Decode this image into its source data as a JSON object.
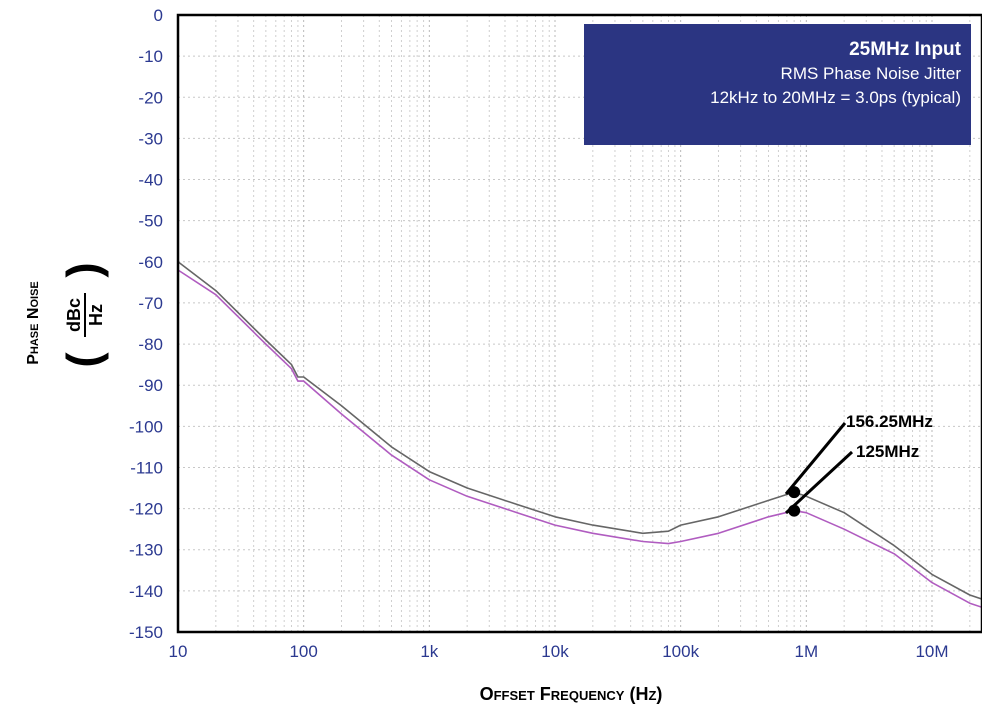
{
  "chart_data": {
    "type": "line",
    "title": "",
    "xlabel": "Offset Frequency (Hz)",
    "ylabel": "Phase Noise",
    "ylabel_unit_num": "dBc",
    "ylabel_unit_den": "Hz",
    "x_scale": "log",
    "xlim": [
      10,
      25000000
    ],
    "ylim": [
      -150,
      0
    ],
    "grid": true,
    "x_ticks": [
      10,
      100,
      1000,
      10000,
      100000,
      1000000,
      10000000
    ],
    "x_tick_labels": [
      "10",
      "100",
      "1k",
      "10k",
      "100k",
      "1M",
      "10M"
    ],
    "y_ticks": [
      0,
      -10,
      -20,
      -30,
      -40,
      -50,
      -60,
      -70,
      -80,
      -90,
      -100,
      -110,
      -120,
      -130,
      -140,
      -150
    ],
    "y_tick_labels": [
      "0",
      "-10",
      "-20",
      "-30",
      "-40",
      "-50",
      "-60",
      "-70",
      "-80",
      "-90",
      "-100",
      "-110",
      "-120",
      "-130",
      "-140",
      "-150"
    ],
    "annotation": {
      "line1": "25MHz Input",
      "line2": "RMS Phase Noise Jitter",
      "line3": "12kHz to 20MHz = 3.0ps (typical)"
    },
    "series": [
      {
        "name": "156.25MHz",
        "color": "#666666",
        "x": [
          10,
          20,
          50,
          80,
          90,
          100,
          200,
          500,
          1000,
          2000,
          5000,
          10000,
          20000,
          50000,
          80000,
          100000,
          200000,
          500000,
          800000,
          1000000,
          2000000,
          5000000,
          10000000,
          20000000,
          25000000
        ],
        "y": [
          -60,
          -67,
          -79,
          -85,
          -88,
          -88,
          -95,
          -105,
          -111,
          -115,
          -119,
          -122,
          -124,
          -126,
          -125.5,
          -124,
          -122,
          -118,
          -116,
          -117,
          -121,
          -129,
          -136,
          -141,
          -142
        ]
      },
      {
        "name": "125MHz",
        "color": "#b05cc0",
        "x": [
          10,
          20,
          50,
          80,
          90,
          100,
          200,
          500,
          1000,
          2000,
          5000,
          10000,
          20000,
          50000,
          80000,
          100000,
          200000,
          500000,
          800000,
          1000000,
          2000000,
          5000000,
          10000000,
          20000000,
          25000000
        ],
        "y": [
          -62,
          -68,
          -80,
          -86,
          -89,
          -89,
          -97,
          -107,
          -113,
          -117,
          -121,
          -124,
          -126,
          -128,
          -128.5,
          -128,
          -126,
          -122,
          -120.5,
          -121,
          -125,
          -131,
          -138,
          -143,
          -144
        ]
      }
    ]
  }
}
